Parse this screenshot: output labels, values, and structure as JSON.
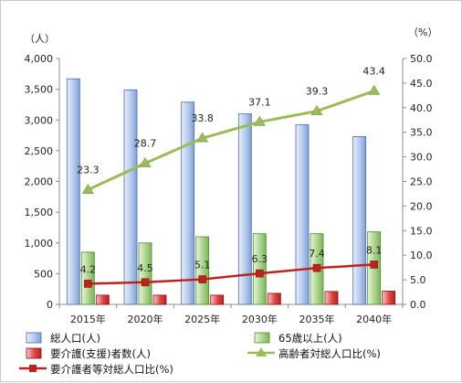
{
  "chart_data": {
    "type": "bar",
    "categories": [
      "2015年",
      "2020年",
      "2025年",
      "2030年",
      "2035年",
      "2040年"
    ],
    "y_left": {
      "unit": "（人）",
      "min": 0,
      "max": 4000,
      "step": 500,
      "tick_labels": [
        "0",
        "500",
        "1,000",
        "1,500",
        "2,000",
        "2,500",
        "3,000",
        "3,500",
        "4,000"
      ]
    },
    "y_right": {
      "unit": "（%）",
      "min": 0,
      "max": 50,
      "step": 5,
      "tick_labels": [
        "0.0",
        "5.0",
        "10.0",
        "15.0",
        "20.0",
        "25.0",
        "30.0",
        "35.0",
        "40.0",
        "45.0",
        "50.0"
      ]
    },
    "series": [
      {
        "name": "総人口(人)",
        "kind": "bar",
        "axis": "left",
        "color": "#9ab6e3",
        "values": [
          3670,
          3490,
          3290,
          3100,
          2925,
          2730
        ]
      },
      {
        "name": "65歳以上(人)",
        "kind": "bar",
        "axis": "left",
        "color": "#9ccc7a",
        "values": [
          850,
          1000,
          1100,
          1150,
          1150,
          1180
        ]
      },
      {
        "name": "要介護(支援)者数(人)",
        "kind": "bar",
        "axis": "left",
        "color": "#d83a3a",
        "values": [
          150,
          150,
          150,
          180,
          210,
          215
        ]
      },
      {
        "name": "高齢者対総人口比(%)",
        "kind": "line",
        "axis": "right",
        "color": "#9cbb59",
        "marker": "triangle",
        "values": [
          23.3,
          28.7,
          33.8,
          37.1,
          39.3,
          43.4
        ],
        "labels": [
          "23.3",
          "28.7",
          "33.8",
          "37.1",
          "39.3",
          "43.4"
        ]
      },
      {
        "name": "要介護者等対総人口比(%)",
        "kind": "line",
        "axis": "right",
        "color": "#c0201e",
        "marker": "square",
        "values": [
          4.2,
          4.5,
          5.1,
          6.3,
          7.4,
          8.1
        ],
        "labels": [
          "4.2",
          "4.5",
          "5.1",
          "6.3",
          "7.4",
          "8.1"
        ]
      }
    ],
    "grid": false,
    "legend_position": "bottom"
  }
}
